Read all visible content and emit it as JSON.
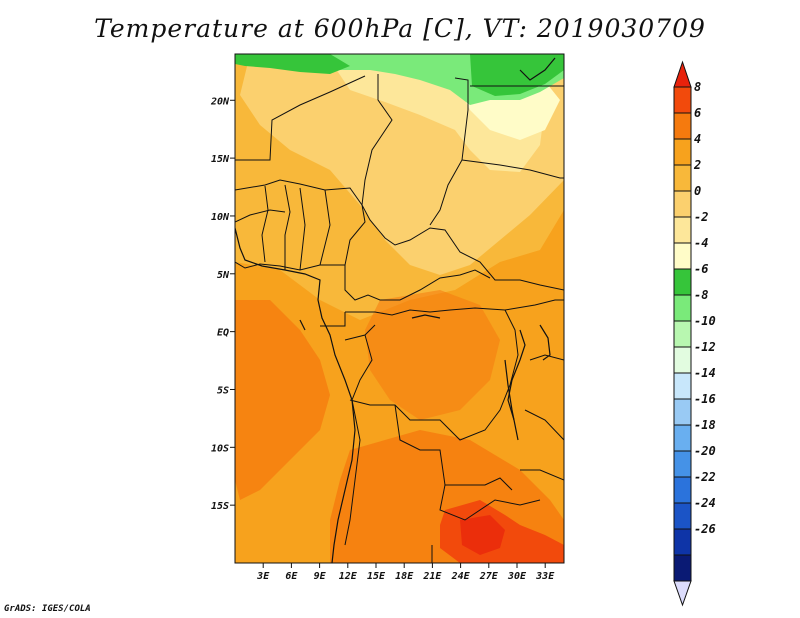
{
  "title": "Temperature at 600hPa [C], VT: 2019030709",
  "credit": "GrADS: IGES/COLA",
  "map": {
    "projection": "lat-lon",
    "lon_range": [
      0,
      35
    ],
    "lat_range": [
      -20,
      24
    ],
    "lon_ticks": [
      {
        "value": 3,
        "label": "3E"
      },
      {
        "value": 6,
        "label": "6E"
      },
      {
        "value": 9,
        "label": "9E"
      },
      {
        "value": 12,
        "label": "12E"
      },
      {
        "value": 15,
        "label": "15E"
      },
      {
        "value": 18,
        "label": "18E"
      },
      {
        "value": 21,
        "label": "21E"
      },
      {
        "value": 24,
        "label": "24E"
      },
      {
        "value": 27,
        "label": "27E"
      },
      {
        "value": 30,
        "label": "30E"
      },
      {
        "value": 33,
        "label": "33E"
      }
    ],
    "lat_ticks": [
      {
        "value": 20,
        "label": "20N"
      },
      {
        "value": 15,
        "label": "15N"
      },
      {
        "value": 10,
        "label": "10N"
      },
      {
        "value": 5,
        "label": "5N"
      },
      {
        "value": 0,
        "label": "EQ"
      },
      {
        "value": -5,
        "label": "5S"
      },
      {
        "value": -10,
        "label": "10S"
      },
      {
        "value": -15,
        "label": "15S"
      }
    ]
  },
  "colorbar": {
    "labels": [
      "8",
      "6",
      "4",
      "2",
      "0",
      "-2",
      "-4",
      "-6",
      "-8",
      "-10",
      "-12",
      "-14",
      "-16",
      "-18",
      "-20",
      "-22",
      "-24",
      "-26"
    ],
    "colors": [
      "#e8220c",
      "#f24a0c",
      "#f57a0e",
      "#f7a21d",
      "#f8b83a",
      "#fbd06e",
      "#fde79a",
      "#fffcc8",
      "#36c53a",
      "#7aea7a",
      "#b8f7b0",
      "#e2fce0",
      "#c8e7fb",
      "#99caf4",
      "#69aff0",
      "#4592e7",
      "#2b73dc",
      "#1b54c6",
      "#0e34a7",
      "#0a1a74",
      "#dcdcfc"
    ]
  }
}
